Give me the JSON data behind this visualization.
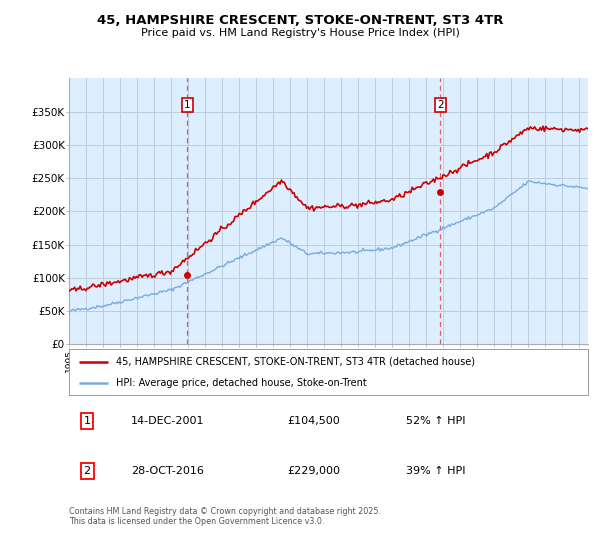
{
  "title": "45, HAMPSHIRE CRESCENT, STOKE-ON-TRENT, ST3 4TR",
  "subtitle": "Price paid vs. HM Land Registry's House Price Index (HPI)",
  "legend_line1": "45, HAMPSHIRE CRESCENT, STOKE-ON-TRENT, ST3 4TR (detached house)",
  "legend_line2": "HPI: Average price, detached house, Stoke-on-Trent",
  "annotation1_label": "1",
  "annotation1_date": "14-DEC-2001",
  "annotation1_price": "£104,500",
  "annotation1_hpi": "52% ↑ HPI",
  "annotation2_label": "2",
  "annotation2_date": "28-OCT-2016",
  "annotation2_price": "£229,000",
  "annotation2_hpi": "39% ↑ HPI",
  "footer": "Contains HM Land Registry data © Crown copyright and database right 2025.\nThis data is licensed under the Open Government Licence v3.0.",
  "red_color": "#cc0000",
  "blue_color": "#7aaadd",
  "vline_color": "#dd4444",
  "background_color": "#ffffff",
  "chart_bg_color": "#ddeeff",
  "grid_color": "#bbccdd",
  "ylim": [
    0,
    400000
  ],
  "yticks": [
    0,
    50000,
    100000,
    150000,
    200000,
    250000,
    300000,
    350000
  ],
  "ytick_labels": [
    "£0",
    "£50K",
    "£100K",
    "£150K",
    "£200K",
    "£250K",
    "£300K",
    "£350K"
  ],
  "sale1_x": 2001.95,
  "sale1_y": 104500,
  "sale2_x": 2016.83,
  "sale2_y": 229000,
  "xmin": 1995,
  "xmax": 2025.5
}
